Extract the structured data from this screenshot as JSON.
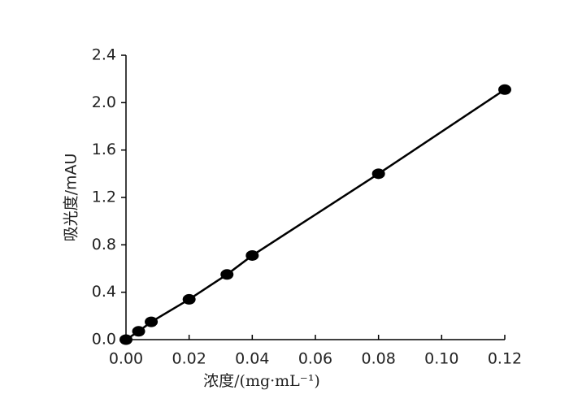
{
  "chart_data": {
    "type": "line",
    "x_label": "浓度/(mg·mL⁻¹)",
    "y_label": "吸光度/mAU",
    "x": [
      0,
      0.004,
      0.008,
      0.02,
      0.032,
      0.04,
      0.08,
      0.12
    ],
    "series": [
      {
        "values": [
          0,
          0.07,
          0.15,
          0.34,
          0.55,
          0.71,
          1.4,
          2.11
        ],
        "color": "#000000"
      }
    ],
    "xlim": [
      0,
      0.12
    ],
    "xticks": [
      {
        "value": 0,
        "label": "0.00"
      },
      0.02,
      0.04,
      0.06,
      0.08,
      {
        "value": 0.1,
        "label": "0.10"
      },
      0.12
    ],
    "ylim": [
      0,
      2.4
    ],
    "yticks": [
      {
        "value": 0,
        "label": "0.0"
      },
      0.4,
      0.8,
      1.2,
      1.6,
      {
        "value": 2,
        "label": "2.0"
      },
      2.4
    ],
    "markers": true
  }
}
